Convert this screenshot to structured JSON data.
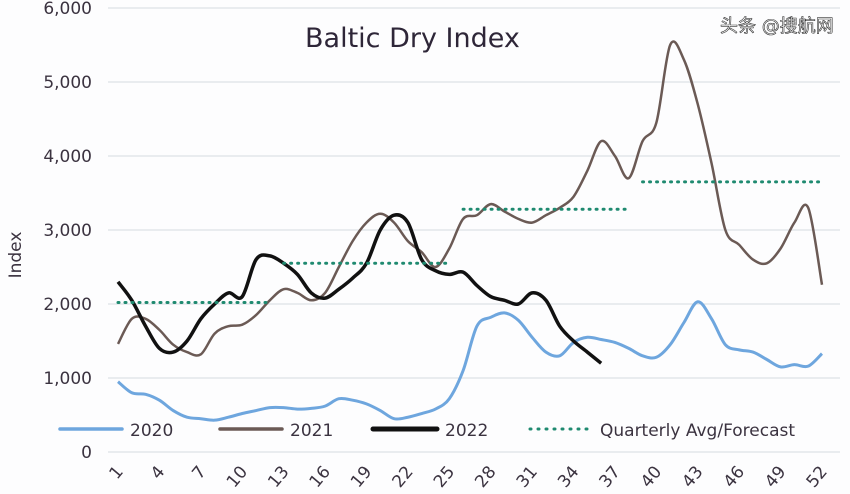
{
  "chart_data": {
    "type": "line",
    "title": "Baltic Dry Index",
    "xlabel": "",
    "ylabel": "Index",
    "xlim": [
      1,
      52
    ],
    "ylim": [
      0,
      6000
    ],
    "grid": "horizontal",
    "legend_placement": "bottom",
    "x_ticks": [
      "1",
      "4",
      "7",
      "10",
      "13",
      "16",
      "19",
      "22",
      "25",
      "28",
      "31",
      "34",
      "37",
      "40",
      "43",
      "46",
      "49",
      "52"
    ],
    "y_ticks": [
      "0",
      "1,000",
      "2,000",
      "3,000",
      "4,000",
      "5,000",
      "6,000"
    ],
    "series": [
      {
        "name": "2020",
        "color": "#6ea6de",
        "style": "solid",
        "x": [
          1,
          2,
          3,
          4,
          5,
          6,
          7,
          8,
          9,
          10,
          11,
          12,
          13,
          14,
          15,
          16,
          17,
          18,
          19,
          20,
          21,
          22,
          23,
          24,
          25,
          26,
          27,
          28,
          29,
          30,
          31,
          32,
          33,
          34,
          35,
          36,
          37,
          38,
          39,
          40,
          41,
          42,
          43,
          44,
          45,
          46,
          47,
          48,
          49,
          50,
          51,
          52
        ],
        "values": [
          950,
          800,
          780,
          700,
          560,
          470,
          450,
          430,
          470,
          520,
          560,
          600,
          600,
          580,
          590,
          620,
          720,
          700,
          650,
          560,
          450,
          470,
          520,
          580,
          720,
          1100,
          1700,
          1820,
          1880,
          1780,
          1550,
          1350,
          1300,
          1480,
          1550,
          1520,
          1480,
          1400,
          1300,
          1280,
          1450,
          1750,
          2030,
          1800,
          1450,
          1380,
          1350,
          1250,
          1150,
          1180,
          1160,
          1330
        ]
      },
      {
        "name": "2021",
        "color": "#6b5a55",
        "style": "solid",
        "x": [
          1,
          2,
          3,
          4,
          5,
          6,
          7,
          8,
          9,
          10,
          11,
          12,
          13,
          14,
          15,
          16,
          17,
          18,
          19,
          20,
          21,
          22,
          23,
          24,
          25,
          26,
          27,
          28,
          29,
          30,
          31,
          32,
          33,
          34,
          35,
          36,
          37,
          38,
          39,
          40,
          41,
          42,
          43,
          44,
          45,
          46,
          47,
          48,
          49,
          50,
          51,
          52
        ],
        "values": [
          1460,
          1800,
          1800,
          1650,
          1450,
          1350,
          1320,
          1600,
          1700,
          1720,
          1850,
          2050,
          2200,
          2150,
          2050,
          2150,
          2500,
          2850,
          3100,
          3220,
          3100,
          2850,
          2700,
          2500,
          2750,
          3150,
          3200,
          3350,
          3250,
          3150,
          3100,
          3200,
          3300,
          3450,
          3800,
          4200,
          4000,
          3700,
          4200,
          4450,
          5500,
          5300,
          4700,
          3900,
          3000,
          2800,
          2600,
          2550,
          2750,
          3100,
          3300,
          2260
        ]
      },
      {
        "name": "2022",
        "color": "#111111",
        "style": "solid",
        "x": [
          1,
          2,
          3,
          4,
          5,
          6,
          7,
          8,
          9,
          10,
          11,
          12,
          13,
          14,
          15,
          16,
          17,
          18,
          19,
          20,
          21,
          22,
          23,
          24,
          25,
          26,
          27,
          28,
          29,
          30,
          31,
          32,
          33,
          34,
          35,
          36
        ],
        "values": [
          2300,
          2050,
          1700,
          1400,
          1350,
          1500,
          1800,
          2000,
          2150,
          2100,
          2600,
          2650,
          2550,
          2400,
          2150,
          2080,
          2200,
          2350,
          2550,
          3000,
          3200,
          3100,
          2600,
          2450,
          2400,
          2430,
          2250,
          2100,
          2050,
          2000,
          2150,
          2050,
          1700,
          1500,
          1350,
          1200
        ]
      },
      {
        "name": "Quarterly Avg/Forecast",
        "color": "#1f8a70",
        "style": "dotted",
        "segments": [
          {
            "x": [
              1,
              12
            ],
            "value": 2020
          },
          {
            "x": [
              13,
              25
            ],
            "value": 2550
          },
          {
            "x": [
              26,
              38
            ],
            "value": 3280
          },
          {
            "x": [
              39,
              52
            ],
            "value": 3650
          }
        ]
      }
    ]
  },
  "watermark": "头条 @搜航网"
}
